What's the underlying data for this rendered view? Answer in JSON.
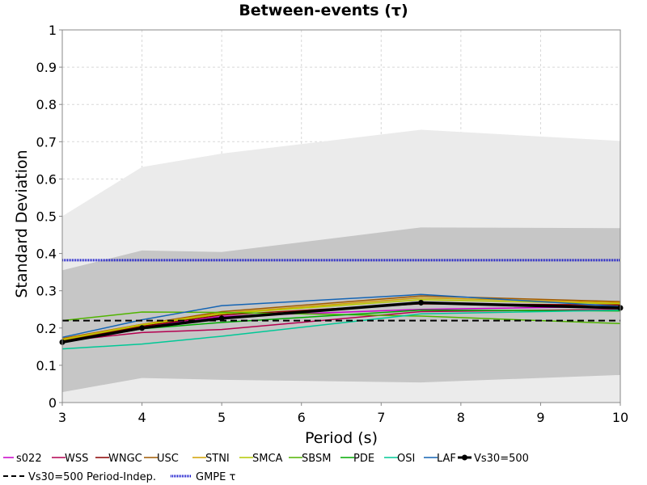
{
  "chart_data": {
    "type": "line",
    "title": "Between-events (τ)",
    "xlabel": "Period (s)",
    "ylabel": "Standard Deviation",
    "xlim": [
      3,
      10
    ],
    "ylim": [
      0,
      1
    ],
    "x_ticks": [
      "3",
      "4",
      "5",
      "6",
      "7",
      "8",
      "9",
      "10"
    ],
    "y_ticks": [
      "0",
      "0.1",
      "0.2",
      "0.3",
      "0.4",
      "0.5",
      "0.6",
      "0.7",
      "0.8",
      "0.9",
      "1"
    ],
    "grid": true,
    "legend_position": "bottom",
    "bands": [
      {
        "x": [
          3,
          4,
          5,
          7.5,
          10
        ],
        "lower": [
          0.0,
          0.0,
          0.0,
          0.0,
          0.0
        ],
        "upper": [
          0.5,
          0.632,
          0.668,
          0.732,
          0.702
        ],
        "color": "#ebebeb"
      },
      {
        "x": [
          3,
          4,
          5,
          7.5,
          10
        ],
        "lower": [
          0.028,
          0.066,
          0.061,
          0.054,
          0.074
        ],
        "upper": [
          0.355,
          0.408,
          0.404,
          0.47,
          0.468
        ],
        "color": "#c6c6c6"
      }
    ],
    "series": [
      {
        "name": "s022",
        "color": "#c800c8",
        "x": [
          3,
          4,
          5,
          7.5,
          10
        ],
        "y": [
          0.163,
          0.203,
          0.231,
          0.25,
          0.258
        ]
      },
      {
        "name": "WSS",
        "color": "#b40050",
        "x": [
          3,
          4,
          5,
          7.5,
          10
        ],
        "y": [
          0.165,
          0.188,
          0.196,
          0.244,
          0.25
        ]
      },
      {
        "name": "WNGC",
        "color": "#8c0000",
        "x": [
          3,
          4,
          5,
          7.5,
          10
        ],
        "y": [
          0.166,
          0.205,
          0.235,
          0.265,
          0.262
        ]
      },
      {
        "name": "USC",
        "color": "#a05a00",
        "x": [
          3,
          4,
          5,
          7.5,
          10
        ],
        "y": [
          0.172,
          0.21,
          0.244,
          0.286,
          0.271
        ]
      },
      {
        "name": "STNI",
        "color": "#d2a000",
        "x": [
          3,
          4,
          5,
          7.5,
          10
        ],
        "y": [
          0.17,
          0.21,
          0.24,
          0.281,
          0.268
        ]
      },
      {
        "name": "SMCA",
        "color": "#b4c800",
        "x": [
          3,
          4,
          5,
          7.5,
          10
        ],
        "y": [
          0.168,
          0.208,
          0.238,
          0.276,
          0.265
        ]
      },
      {
        "name": "SBSM",
        "color": "#50b400",
        "x": [
          3,
          4,
          5,
          7.5,
          10
        ],
        "y": [
          0.22,
          0.243,
          0.242,
          0.232,
          0.212
        ]
      },
      {
        "name": "PDE",
        "color": "#00aa00",
        "x": [
          3,
          4,
          5,
          7.5,
          10
        ],
        "y": [
          0.161,
          0.198,
          0.215,
          0.248,
          0.246
        ]
      },
      {
        "name": "OSI",
        "color": "#00c896",
        "x": [
          3,
          4,
          5,
          7.5,
          10
        ],
        "y": [
          0.144,
          0.157,
          0.178,
          0.238,
          0.248
        ]
      },
      {
        "name": "LAF",
        "color": "#1464b4",
        "x": [
          3,
          4,
          5,
          7.5,
          10
        ],
        "y": [
          0.175,
          0.222,
          0.26,
          0.29,
          0.258
        ]
      },
      {
        "name": "Vs30=500",
        "color": "#000000",
        "x": [
          3,
          4,
          5,
          7.5,
          10
        ],
        "y": [
          0.162,
          0.2,
          0.226,
          0.268,
          0.254
        ]
      },
      {
        "name": "Vs30=500 Period-Indep.",
        "color": "#000000",
        "x": [
          3,
          10
        ],
        "y": [
          0.22,
          0.22
        ]
      },
      {
        "name": "GMPE τ",
        "color": "#0000c8",
        "x": [
          3,
          10
        ],
        "y": [
          0.382,
          0.382
        ]
      }
    ]
  }
}
